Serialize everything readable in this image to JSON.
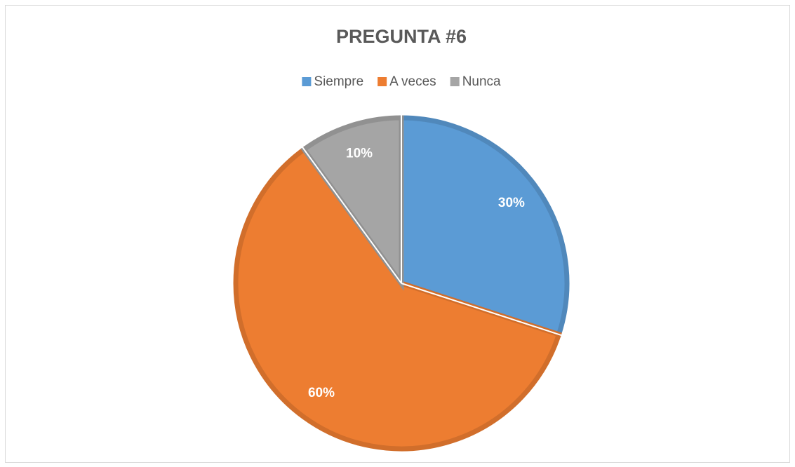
{
  "chart_data": {
    "type": "pie",
    "title": "PREGUNTA #6",
    "categories": [
      "Siempre",
      "A veces",
      "Nunca"
    ],
    "values": [
      30,
      60,
      10
    ],
    "value_labels": [
      "30%",
      "60%",
      "10%"
    ],
    "colors": [
      "#5b9bd5",
      "#ed7d31",
      "#a5a5a5"
    ],
    "legend": "top"
  }
}
